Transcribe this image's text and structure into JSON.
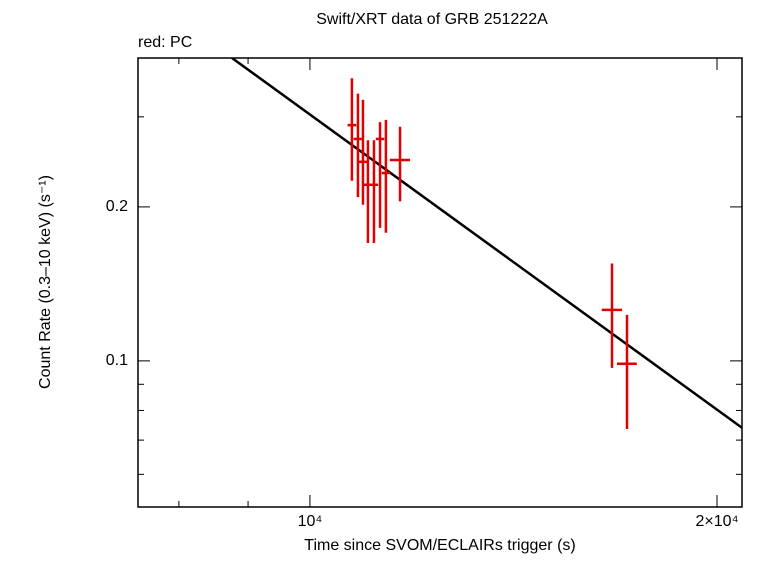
{
  "chart_data": {
    "type": "scatter",
    "title": "Swift/XRT data of GRB 251222A",
    "xlabel": "Time since SVOM/ECLAIRs trigger (s)",
    "ylabel": "Count Rate (0.3–10 keV) (s⁻¹)",
    "log_x": true,
    "log_y": true,
    "xlim": [
      7462,
      20870
    ],
    "ylim": [
      0.0518,
      0.391
    ],
    "xticks": [
      {
        "value": 10000,
        "label": "10⁴"
      },
      {
        "value": 20000,
        "label": "2×10⁴"
      }
    ],
    "xminor_ticks": [
      8000,
      9000
    ],
    "yticks": [
      0.1,
      0.2
    ],
    "yminor_ticks": [
      0.06,
      0.07,
      0.08,
      0.09,
      0.3
    ],
    "series": [
      {
        "name": "red: PC",
        "color": "#e00000",
        "x": [
          10741,
          10852,
          10945,
          11038,
          11152,
          11268,
          11381,
          11658,
          16726,
          17158
        ],
        "xerr": [
          80,
          80,
          80,
          80,
          80,
          80,
          80,
          200,
          290,
          290
        ],
        "values": [
          0.289,
          0.2716,
          0.245,
          0.221,
          0.221,
          0.2716,
          0.233,
          0.247,
          0.1258,
          0.0987
        ],
        "ylow": [
          0.225,
          0.209,
          0.202,
          0.17,
          0.17,
          0.182,
          0.178,
          0.205,
          0.0969,
          0.0736
        ],
        "yhigh": [
          0.357,
          0.333,
          0.324,
          0.27,
          0.27,
          0.293,
          0.296,
          0.287,
          0.155,
          0.123
        ]
      }
    ],
    "model": {
      "color": "#000000",
      "x": [
        8757,
        20870
      ],
      "values": [
        0.391,
        0.074
      ]
    }
  }
}
